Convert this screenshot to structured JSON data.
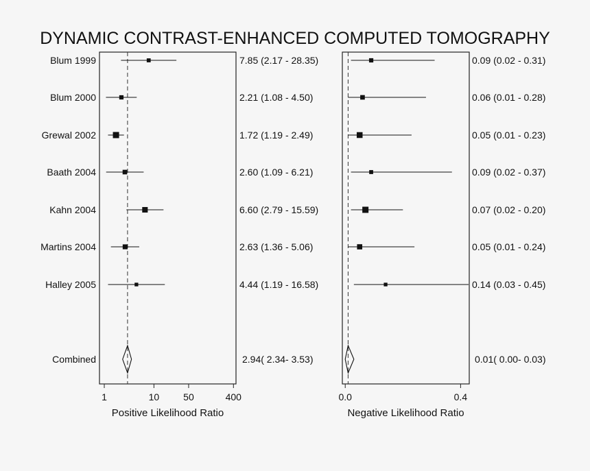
{
  "chart_data": {
    "type": "forest",
    "title": "DYNAMIC CONTRAST-ENHANCED COMPUTED TOMOGRAPHY",
    "studies": [
      "Blum 1999",
      "Blum 2000",
      "Grewal 2002",
      "Baath 2004",
      "Kahn 2004",
      "Martins 2004",
      "Halley 2005"
    ],
    "combined_label": "Combined",
    "panels": [
      {
        "name": "positive",
        "xlabel": "Positive Likelihood Ratio",
        "scale": "log",
        "xlim": [
          0.8,
          450
        ],
        "ticks": [
          1,
          10,
          50,
          400
        ],
        "tick_labels": [
          "1",
          "10",
          "50",
          "400"
        ],
        "reference_line": 2.94,
        "estimates": [
          7.85,
          2.21,
          1.72,
          2.6,
          6.6,
          2.63,
          4.44
        ],
        "ci_low": [
          2.17,
          1.08,
          1.19,
          1.09,
          2.79,
          1.36,
          1.19
        ],
        "ci_high": [
          28.35,
          4.5,
          2.49,
          6.21,
          15.59,
          5.06,
          16.58
        ],
        "weights": [
          0.6,
          0.7,
          1.3,
          0.8,
          1.1,
          0.9,
          0.5
        ],
        "labels": [
          "7.85 (2.17 - 28.35)",
          "2.21 (1.08 - 4.50)",
          "1.72 (1.19 - 2.49)",
          "2.60 (1.09 - 6.21)",
          "6.60 (2.79 - 15.59)",
          "2.63 (1.36 - 5.06)",
          "4.44 (1.19 - 16.58)"
        ],
        "combined": {
          "estimate": 2.94,
          "ci": [
            2.34,
            3.53
          ],
          "label": "2.94( 2.34- 3.53)"
        }
      },
      {
        "name": "negative",
        "xlabel": "Negative Likelihood Ratio",
        "scale": "linear",
        "xlim": [
          -0.01,
          0.43
        ],
        "ticks": [
          0.0,
          0.4
        ],
        "tick_labels": [
          "0.0",
          "0.4"
        ],
        "reference_line": 0.01,
        "estimates": [
          0.09,
          0.06,
          0.05,
          0.09,
          0.07,
          0.05,
          0.14
        ],
        "ci_low": [
          0.02,
          0.01,
          0.01,
          0.02,
          0.02,
          0.01,
          0.03
        ],
        "ci_high": [
          0.31,
          0.28,
          0.23,
          0.37,
          0.2,
          0.24,
          0.45
        ],
        "weights": [
          0.7,
          0.8,
          1.2,
          0.6,
          1.3,
          1.0,
          0.5
        ],
        "labels": [
          "0.09 (0.02 - 0.31)",
          "0.06 (0.01 - 0.28)",
          "0.05 (0.01 - 0.23)",
          "0.09 (0.02 - 0.37)",
          "0.07 (0.02 - 0.20)",
          "0.05 (0.01 - 0.24)",
          "0.14 (0.03 - 0.45)"
        ],
        "combined": {
          "estimate": 0.01,
          "ci": [
            0.0,
            0.03
          ],
          "label": "0.01( 0.00- 0.03)"
        }
      }
    ]
  }
}
